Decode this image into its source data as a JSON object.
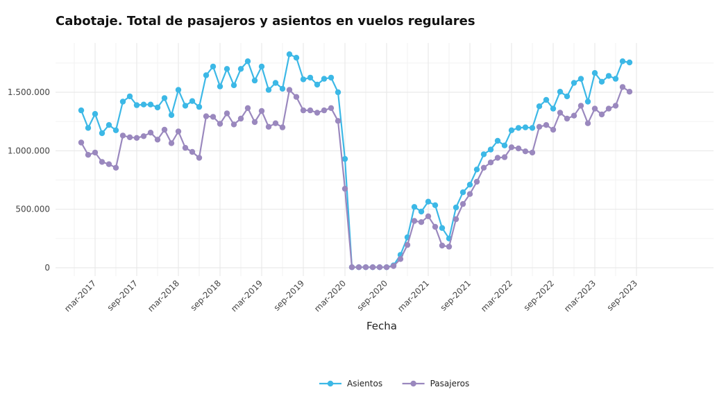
{
  "chart_data": {
    "type": "line",
    "title": "Cabotaje. Total de pasajeros y asientos en vuelos regulares",
    "xlabel": "Fecha",
    "ylabel": "",
    "ylim": [
      0,
      1900000
    ],
    "y_ticks": [
      {
        "value": 0,
        "label": "0"
      },
      {
        "value": 500000,
        "label": "500.000"
      },
      {
        "value": 1000000,
        "label": "1.000.000"
      },
      {
        "value": 1500000,
        "label": "1.500.000"
      }
    ],
    "x_ticks": [
      "mar-2017",
      "sep-2017",
      "mar-2018",
      "sep-2018",
      "mar-2019",
      "sep-2019",
      "mar-2020",
      "sep-2020",
      "mar-2021",
      "sep-2021",
      "mar-2022",
      "sep-2022",
      "mar-2023",
      "sep-2023"
    ],
    "x": [
      "2017-01",
      "2017-02",
      "2017-03",
      "2017-04",
      "2017-05",
      "2017-06",
      "2017-07",
      "2017-08",
      "2017-09",
      "2017-10",
      "2017-11",
      "2017-12",
      "2018-01",
      "2018-02",
      "2018-03",
      "2018-04",
      "2018-05",
      "2018-06",
      "2018-07",
      "2018-08",
      "2018-09",
      "2018-10",
      "2018-11",
      "2018-12",
      "2019-01",
      "2019-02",
      "2019-03",
      "2019-04",
      "2019-05",
      "2019-06",
      "2019-07",
      "2019-08",
      "2019-09",
      "2019-10",
      "2019-11",
      "2019-12",
      "2020-01",
      "2020-02",
      "2020-03",
      "2020-04",
      "2020-05",
      "2020-06",
      "2020-07",
      "2020-08",
      "2020-09",
      "2020-10",
      "2020-11",
      "2020-12",
      "2021-01",
      "2021-02",
      "2021-03",
      "2021-04",
      "2021-05",
      "2021-06",
      "2021-07",
      "2021-08",
      "2021-09",
      "2021-10",
      "2021-11",
      "2021-12",
      "2022-01",
      "2022-02",
      "2022-03",
      "2022-04",
      "2022-05",
      "2022-06",
      "2022-07",
      "2022-08",
      "2022-09",
      "2022-10",
      "2022-11",
      "2022-12",
      "2023-01",
      "2023-02",
      "2023-03",
      "2023-04",
      "2023-05",
      "2023-06",
      "2023-07",
      "2023-08"
    ],
    "series": [
      {
        "name": "Asientos",
        "color": "#3cb8e6",
        "values": [
          1345000,
          1195000,
          1315000,
          1150000,
          1220000,
          1175000,
          1420000,
          1465000,
          1390000,
          1395000,
          1395000,
          1370000,
          1450000,
          1305000,
          1520000,
          1385000,
          1425000,
          1375000,
          1645000,
          1720000,
          1550000,
          1700000,
          1560000,
          1700000,
          1765000,
          1600000,
          1720000,
          1520000,
          1580000,
          1530000,
          1825000,
          1795000,
          1610000,
          1625000,
          1565000,
          1615000,
          1625000,
          1500000,
          930000,
          5000,
          5000,
          5000,
          5000,
          5000,
          5000,
          20000,
          110000,
          260000,
          520000,
          480000,
          565000,
          535000,
          340000,
          250000,
          515000,
          645000,
          710000,
          840000,
          970000,
          1010000,
          1085000,
          1045000,
          1175000,
          1195000,
          1200000,
          1195000,
          1380000,
          1435000,
          1360000,
          1505000,
          1465000,
          1580000,
          1615000,
          1420000,
          1665000,
          1590000,
          1640000,
          1615000,
          1765000,
          1755000
        ]
      },
      {
        "name": "Pasajeros",
        "color": "#9a88be",
        "values": [
          1070000,
          965000,
          985000,
          905000,
          885000,
          855000,
          1130000,
          1115000,
          1110000,
          1125000,
          1155000,
          1095000,
          1180000,
          1065000,
          1165000,
          1025000,
          990000,
          940000,
          1295000,
          1290000,
          1230000,
          1320000,
          1225000,
          1275000,
          1365000,
          1245000,
          1340000,
          1205000,
          1235000,
          1200000,
          1520000,
          1460000,
          1345000,
          1345000,
          1325000,
          1345000,
          1365000,
          1255000,
          675000,
          5000,
          5000,
          5000,
          5000,
          5000,
          5000,
          15000,
          75000,
          195000,
          400000,
          390000,
          440000,
          350000,
          190000,
          180000,
          415000,
          545000,
          630000,
          735000,
          855000,
          900000,
          940000,
          945000,
          1030000,
          1020000,
          995000,
          985000,
          1205000,
          1220000,
          1180000,
          1325000,
          1275000,
          1300000,
          1385000,
          1235000,
          1360000,
          1310000,
          1360000,
          1385000,
          1545000,
          1505000
        ]
      }
    ],
    "legend_position": "bottom-center",
    "grid": true
  }
}
